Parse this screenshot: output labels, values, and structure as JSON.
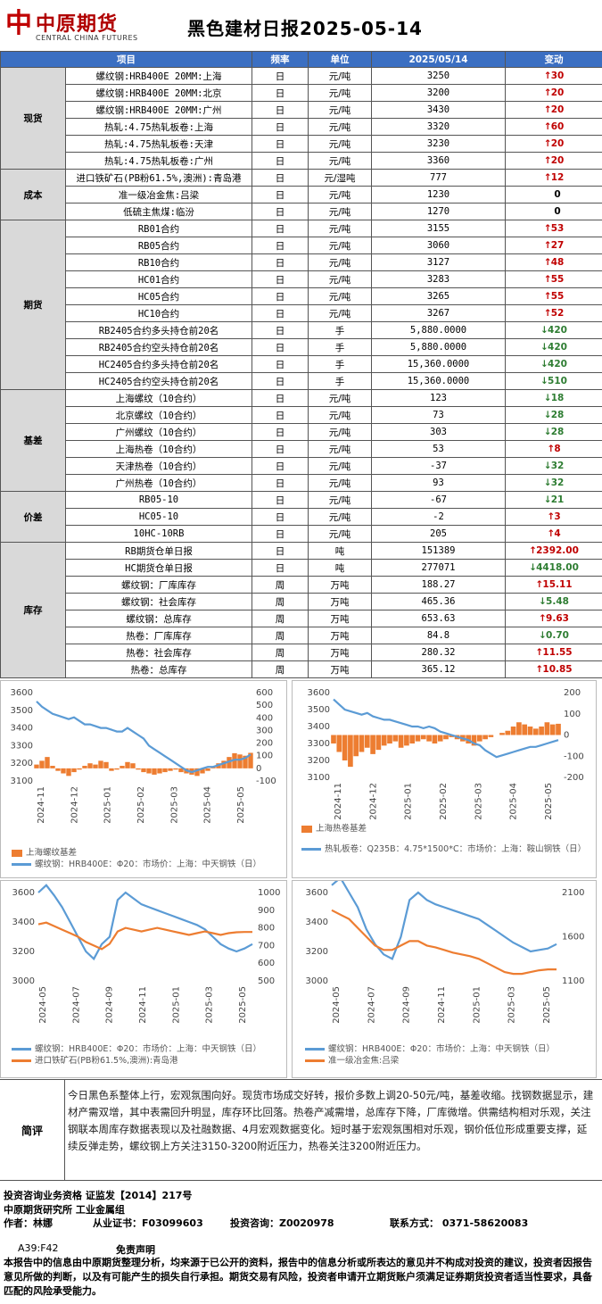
{
  "header": {
    "logo_mark": "中",
    "logo_cn": "中原期货",
    "logo_en": "CENTRAL CHINA FUTURES",
    "title": "黑色建材日报2025-05-14"
  },
  "table": {
    "headers": [
      "项目",
      "频率",
      "单位",
      "2025/05/14",
      "变动"
    ],
    "groups": [
      {
        "category": "现货",
        "rows": [
          {
            "item": "螺纹钢:HRB400E 20MM:上海",
            "freq": "日",
            "unit": "元/吨",
            "value": "3250",
            "dir": "up",
            "change": "30"
          },
          {
            "item": "螺纹钢:HRB400E 20MM:北京",
            "freq": "日",
            "unit": "元/吨",
            "value": "3200",
            "dir": "up",
            "change": "20"
          },
          {
            "item": "螺纹钢:HRB400E 20MM:广州",
            "freq": "日",
            "unit": "元/吨",
            "value": "3430",
            "dir": "up",
            "change": "20"
          },
          {
            "item": "热轧:4.75热轧板卷:上海",
            "freq": "日",
            "unit": "元/吨",
            "value": "3320",
            "dir": "up",
            "change": "60"
          },
          {
            "item": "热轧:4.75热轧板卷:天津",
            "freq": "日",
            "unit": "元/吨",
            "value": "3230",
            "dir": "up",
            "change": "20"
          },
          {
            "item": "热轧:4.75热轧板卷:广州",
            "freq": "日",
            "unit": "元/吨",
            "value": "3360",
            "dir": "up",
            "change": "20"
          }
        ]
      },
      {
        "category": "成本",
        "rows": [
          {
            "item": "进口铁矿石(PB粉61.5%,澳洲):青岛港",
            "freq": "日",
            "unit": "元/湿吨",
            "value": "777",
            "dir": "up",
            "change": "12"
          },
          {
            "item": "准一级冶金焦:吕梁",
            "freq": "日",
            "unit": "元/吨",
            "value": "1230",
            "dir": "flat",
            "change": "0"
          },
          {
            "item": "低硫主焦煤:临汾",
            "freq": "日",
            "unit": "元/吨",
            "value": "1270",
            "dir": "flat",
            "change": "0"
          }
        ]
      },
      {
        "category": "期货",
        "rows": [
          {
            "item": "RB01合约",
            "freq": "日",
            "unit": "元/吨",
            "value": "3155",
            "dir": "up",
            "change": "53"
          },
          {
            "item": "RB05合约",
            "freq": "日",
            "unit": "元/吨",
            "value": "3060",
            "dir": "up",
            "change": "27"
          },
          {
            "item": "RB10合约",
            "freq": "日",
            "unit": "元/吨",
            "value": "3127",
            "dir": "up",
            "change": "48"
          },
          {
            "item": "HC01合约",
            "freq": "日",
            "unit": "元/吨",
            "value": "3283",
            "dir": "up",
            "change": "55"
          },
          {
            "item": "HC05合约",
            "freq": "日",
            "unit": "元/吨",
            "value": "3265",
            "dir": "up",
            "change": "55"
          },
          {
            "item": "HC10合约",
            "freq": "日",
            "unit": "元/吨",
            "value": "3267",
            "dir": "up",
            "change": "52"
          },
          {
            "item": "RB2405合约多头持仓前20名",
            "freq": "日",
            "unit": "手",
            "value": "5,880.0000",
            "dir": "down",
            "change": "420"
          },
          {
            "item": "RB2405合约空头持仓前20名",
            "freq": "日",
            "unit": "手",
            "value": "5,880.0000",
            "dir": "down",
            "change": "420"
          },
          {
            "item": "HC2405合约多头持仓前20名",
            "freq": "日",
            "unit": "手",
            "value": "15,360.0000",
            "dir": "down",
            "change": "420"
          },
          {
            "item": "HC2405合约空头持仓前20名",
            "freq": "日",
            "unit": "手",
            "value": "15,360.0000",
            "dir": "down",
            "change": "510"
          }
        ]
      },
      {
        "category": "基差",
        "rows": [
          {
            "item": "上海螺纹（10合约）",
            "freq": "日",
            "unit": "元/吨",
            "value": "123",
            "dir": "down",
            "change": "18"
          },
          {
            "item": "北京螺纹（10合约）",
            "freq": "日",
            "unit": "元/吨",
            "value": "73",
            "dir": "down",
            "change": "28"
          },
          {
            "item": "广州螺纹（10合约）",
            "freq": "日",
            "unit": "元/吨",
            "value": "303",
            "dir": "down",
            "change": "28"
          },
          {
            "item": "上海热卷（10合约）",
            "freq": "日",
            "unit": "元/吨",
            "value": "53",
            "dir": "up",
            "change": "8"
          },
          {
            "item": "天津热卷（10合约）",
            "freq": "日",
            "unit": "元/吨",
            "value": "-37",
            "dir": "down",
            "change": "32"
          },
          {
            "item": "广州热卷（10合约）",
            "freq": "日",
            "unit": "元/吨",
            "value": "93",
            "dir": "down",
            "change": "32"
          }
        ]
      },
      {
        "category": "价差",
        "rows": [
          {
            "item": "RB05-10",
            "freq": "日",
            "unit": "元/吨",
            "value": "-67",
            "dir": "down",
            "change": "21"
          },
          {
            "item": "HC05-10",
            "freq": "日",
            "unit": "元/吨",
            "value": "-2",
            "dir": "up",
            "change": "3"
          },
          {
            "item": "10HC-10RB",
            "freq": "日",
            "unit": "元/吨",
            "value": "205",
            "dir": "up",
            "change": "4"
          }
        ]
      },
      {
        "category": "库存",
        "rows": [
          {
            "item": "RB期货仓单日报",
            "freq": "日",
            "unit": "吨",
            "value": "151389",
            "dir": "up",
            "change": "2392.00"
          },
          {
            "item": "HC期货仓单日报",
            "freq": "日",
            "unit": "吨",
            "value": "277071",
            "dir": "down",
            "change": "4418.00"
          },
          {
            "item": "螺纹钢：厂库库存",
            "freq": "周",
            "unit": "万吨",
            "value": "188.27",
            "dir": "up",
            "change": "15.11"
          },
          {
            "item": "螺纹钢：社会库存",
            "freq": "周",
            "unit": "万吨",
            "value": "465.36",
            "dir": "down",
            "change": "5.48"
          },
          {
            "item": "螺纹钢：总库存",
            "freq": "周",
            "unit": "万吨",
            "value": "653.63",
            "dir": "up",
            "change": "9.63"
          },
          {
            "item": "热卷：厂库库存",
            "freq": "周",
            "unit": "万吨",
            "value": "84.8",
            "dir": "down",
            "change": "0.70"
          },
          {
            "item": "热卷：社会库存",
            "freq": "周",
            "unit": "万吨",
            "value": "280.32",
            "dir": "up",
            "change": "11.55"
          },
          {
            "item": "热卷：总库存",
            "freq": "周",
            "unit": "万吨",
            "value": "365.12",
            "dir": "up",
            "change": "10.85"
          }
        ]
      }
    ]
  },
  "chart_data": [
    {
      "type": "line",
      "left_axis": [
        3100,
        3200,
        3300,
        3400,
        3500,
        3600
      ],
      "right_axis": [
        -100,
        0,
        100,
        200,
        300,
        400,
        500,
        600
      ],
      "x_ticks": [
        "2024-11",
        "2024-12",
        "2025-01",
        "2025-02",
        "2025-03",
        "2025-04",
        "2025-05"
      ],
      "series": [
        {
          "name": "上海螺纹基差",
          "kind": "bar",
          "axis": "right",
          "color": "#ed7d31",
          "values": [
            30,
            60,
            90,
            20,
            -20,
            -40,
            -60,
            -30,
            -10,
            20,
            40,
            30,
            60,
            50,
            -20,
            -10,
            20,
            50,
            40,
            -10,
            -30,
            -40,
            -50,
            -40,
            -30,
            -20,
            -10,
            -30,
            -40,
            -50,
            -60,
            -40,
            -20,
            10,
            40,
            60,
            90,
            120,
            110,
            100,
            123
          ]
        },
        {
          "name": "螺纹钢：HRB400E：Φ20：市场价：上海：中天钢铁（日）",
          "kind": "line",
          "axis": "left",
          "color": "#5b9bd5",
          "values": [
            3550,
            3520,
            3500,
            3480,
            3470,
            3460,
            3450,
            3460,
            3440,
            3420,
            3420,
            3410,
            3400,
            3400,
            3390,
            3380,
            3380,
            3400,
            3380,
            3360,
            3340,
            3300,
            3280,
            3260,
            3240,
            3220,
            3200,
            3180,
            3160,
            3150,
            3160,
            3170,
            3180,
            3180,
            3190,
            3200,
            3210,
            3220,
            3220,
            3230,
            3250
          ]
        }
      ]
    },
    {
      "type": "line",
      "left_axis": [
        3100,
        3200,
        3300,
        3400,
        3500,
        3600
      ],
      "right_axis": [
        -200,
        -100,
        0,
        100,
        200
      ],
      "x_ticks": [
        "2024-11",
        "2024-12",
        "2025-01",
        "2025-02",
        "2025-03",
        "2025-04",
        "2025-05"
      ],
      "series": [
        {
          "name": "上海热卷基差",
          "kind": "bar",
          "axis": "right",
          "color": "#ed7d31",
          "values": [
            -40,
            -80,
            -120,
            -150,
            -100,
            -80,
            -60,
            -90,
            -70,
            -50,
            -40,
            -30,
            -60,
            -50,
            -40,
            -30,
            -20,
            -30,
            -40,
            -30,
            -20,
            -10,
            -20,
            -30,
            -40,
            -50,
            -30,
            -20,
            -10,
            0,
            10,
            20,
            40,
            60,
            50,
            40,
            30,
            40,
            60,
            50,
            53
          ]
        },
        {
          "name": "热轧板卷：Q235B：4.75*1500*C：市场价：上海：鞍山钢铁（日）",
          "kind": "line",
          "axis": "left",
          "color": "#5b9bd5",
          "values": [
            3560,
            3530,
            3500,
            3490,
            3480,
            3470,
            3480,
            3460,
            3450,
            3440,
            3440,
            3430,
            3420,
            3410,
            3400,
            3400,
            3390,
            3400,
            3390,
            3370,
            3360,
            3350,
            3340,
            3330,
            3320,
            3300,
            3290,
            3260,
            3240,
            3220,
            3230,
            3240,
            3250,
            3260,
            3270,
            3280,
            3280,
            3290,
            3300,
            3310,
            3320
          ]
        }
      ]
    },
    {
      "type": "line",
      "left_axis": [
        3000,
        3200,
        3400,
        3600
      ],
      "right_axis": [
        500,
        600,
        700,
        800,
        900,
        1000
      ],
      "x_ticks": [
        "2024-05",
        "2024-07",
        "2024-09",
        "2024-11",
        "2025-01",
        "2025-03",
        "2025-05"
      ],
      "series": [
        {
          "name": "螺纹钢：HRB400E：Φ20：市场价：上海：中天钢铁（日）",
          "kind": "line",
          "axis": "left",
          "color": "#5b9bd5",
          "values": [
            3600,
            3650,
            3580,
            3500,
            3400,
            3300,
            3200,
            3150,
            3250,
            3300,
            3550,
            3600,
            3560,
            3520,
            3500,
            3480,
            3460,
            3440,
            3420,
            3400,
            3380,
            3350,
            3300,
            3250,
            3220,
            3200,
            3220,
            3250
          ]
        },
        {
          "name": "进口铁矿石(PB粉61.5%,澳洲):青岛港",
          "kind": "line",
          "axis": "right",
          "color": "#ed7d31",
          "values": [
            820,
            830,
            810,
            790,
            770,
            750,
            720,
            700,
            680,
            710,
            780,
            800,
            790,
            780,
            790,
            800,
            790,
            780,
            770,
            760,
            770,
            780,
            770,
            760,
            770,
            775,
            777,
            777
          ]
        }
      ]
    },
    {
      "type": "line",
      "left_axis": [
        3000,
        3200,
        3400,
        3600
      ],
      "right_axis": [
        1100,
        1600,
        2100
      ],
      "x_ticks": [
        "2024-05",
        "2024-07",
        "2024-09",
        "2024-11",
        "2025-01",
        "2025-03",
        "2025-05"
      ],
      "series": [
        {
          "name": "螺纹钢：HRB400E：Φ20：市场价：上海：中天钢铁（日）",
          "kind": "line",
          "axis": "left",
          "color": "#5b9bd5",
          "values": [
            3650,
            3700,
            3600,
            3500,
            3350,
            3250,
            3180,
            3150,
            3300,
            3550,
            3600,
            3550,
            3520,
            3500,
            3480,
            3460,
            3440,
            3420,
            3380,
            3340,
            3300,
            3260,
            3230,
            3200,
            3210,
            3220,
            3250
          ]
        },
        {
          "name": "准一级冶金焦:吕梁",
          "kind": "line",
          "axis": "right",
          "color": "#ed7d31",
          "values": [
            1900,
            1850,
            1800,
            1700,
            1600,
            1500,
            1450,
            1450,
            1500,
            1550,
            1550,
            1500,
            1480,
            1450,
            1420,
            1400,
            1380,
            1350,
            1300,
            1250,
            1200,
            1180,
            1180,
            1200,
            1220,
            1230,
            1230
          ]
        }
      ]
    }
  ],
  "comment": {
    "label": "简评",
    "text": "今日黑色系整体上行，宏观氛围向好。现货市场成交好转，报价多数上调20-50元/吨，基差收缩。找钢数据显示，建材产需双增，其中表需回升明显，库存环比回落。热卷产减需增，总库存下降，厂库微增。供需结构相对乐观，关注钢联本周库存数据表现以及社融数据、4月宏观数据变化。短时基于宏观氛围相对乐观，钢价低位形成重要支撑，延续反弹走势，螺纹钢上方关注3150-3200附近压力，热卷关注3200附近压力。"
  },
  "footer": {
    "qual": "投资咨询业务资格  证监发【2014】217号",
    "org": "中原期货研究所  工业金属组",
    "author": "作者：林娜",
    "cert": "从业证书：F03099603",
    "consult": "投资咨询：Z0020978",
    "contact": "联系方式：  0371-58620083",
    "code": "A39:F42",
    "disclaimer_title": "免责声明",
    "disclaimer": "本报告中的信息由中原期货整理分析，均来源于已公开的资料，报告中的信息分析或所表达的意见并不构成对投资的建议，投资者因报告意见所做的判断，以及有可能产生的损失自行承担。期货交易有风险，投资者申请开立期货账户须满足证券期货投资者适当性要求，具备匹配的风险承受能力。"
  }
}
